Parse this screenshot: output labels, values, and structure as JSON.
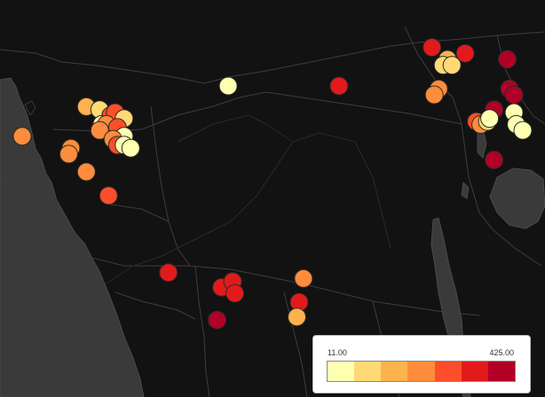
{
  "legend": {
    "min_label": "11.00",
    "max_label": "425.00",
    "color_scale": [
      "#ffffb2",
      "#fed976",
      "#feb24c",
      "#fd8d3c",
      "#fc4e2a",
      "#e31a1c",
      "#b10026"
    ]
  },
  "map": {
    "background": "#111111",
    "water_color": "#3a3a3a",
    "border_color": "#3c3c3c",
    "marker_stroke": "#2a2a2a"
  },
  "markers": [
    {
      "lat": 3.3,
      "lon": 23.3,
      "color_index": 5
    },
    {
      "lat": 4.6,
      "lon": 27.5,
      "color_index": 5
    },
    {
      "lat": 4.2,
      "lon": 28.2,
      "color_index": 2
    },
    {
      "lat": 4.0,
      "lon": 28.0,
      "color_index": 1
    },
    {
      "lat": 4.0,
      "lon": 28.4,
      "color_index": 1
    },
    {
      "lat": 4.4,
      "lon": 29.0,
      "color_index": 5
    },
    {
      "lat": 4.2,
      "lon": 30.9,
      "color_index": 6
    },
    {
      "lat": 3.3,
      "lon": 18.3,
      "color_index": 0
    },
    {
      "lat": 3.2,
      "lon": 27.8,
      "color_index": 3
    },
    {
      "lat": 3.0,
      "lon": 27.6,
      "color_index": 3
    },
    {
      "lat": 3.2,
      "lon": 31.0,
      "color_index": 6
    },
    {
      "lat": 3.0,
      "lon": 31.2,
      "color_index": 6
    },
    {
      "lat": 2.5,
      "lon": 30.3,
      "color_index": 6
    },
    {
      "lat": 2.6,
      "lon": 11.9,
      "color_index": 2
    },
    {
      "lat": 2.5,
      "lon": 12.5,
      "color_index": 1
    },
    {
      "lat": 2.3,
      "lon": 13.0,
      "color_index": 4
    },
    {
      "lat": 2.4,
      "lon": 13.2,
      "color_index": 4
    },
    {
      "lat": 2.2,
      "lon": 13.6,
      "color_index": 1
    },
    {
      "lat": 2.0,
      "lon": 12.6,
      "color_index": 0
    },
    {
      "lat": 2.0,
      "lon": 12.8,
      "color_index": 3
    },
    {
      "lat": 1.9,
      "lon": 13.3,
      "color_index": 4
    },
    {
      "lat": 1.8,
      "lon": 12.5,
      "color_index": 3
    },
    {
      "lat": 1.6,
      "lon": 13.6,
      "color_index": 0
    },
    {
      "lat": 1.5,
      "lon": 13.1,
      "color_index": 3
    },
    {
      "lat": 1.3,
      "lon": 13.3,
      "color_index": 4
    },
    {
      "lat": 1.3,
      "lon": 13.6,
      "color_index": 0
    },
    {
      "lat": 1.2,
      "lon": 13.9,
      "color_index": 0
    },
    {
      "lat": 1.6,
      "lon": 9.0,
      "color_index": 3
    },
    {
      "lat": 1.2,
      "lon": 11.2,
      "color_index": 3
    },
    {
      "lat": 1.0,
      "lon": 11.1,
      "color_index": 3
    },
    {
      "lat": 0.4,
      "lon": 11.9,
      "color_index": 3
    },
    {
      "lat": -0.4,
      "lon": 12.9,
      "color_index": 4
    },
    {
      "lat": 2.1,
      "lon": 29.5,
      "color_index": 4
    },
    {
      "lat": 2.0,
      "lon": 29.7,
      "color_index": 3
    },
    {
      "lat": 2.1,
      "lon": 30.0,
      "color_index": 1
    },
    {
      "lat": 2.2,
      "lon": 30.1,
      "color_index": 0
    },
    {
      "lat": 2.4,
      "lon": 31.2,
      "color_index": 0
    },
    {
      "lat": 2.0,
      "lon": 31.3,
      "color_index": 0
    },
    {
      "lat": 1.8,
      "lon": 31.6,
      "color_index": 0
    },
    {
      "lat": 0.8,
      "lon": 30.3,
      "color_index": 6
    },
    {
      "lat": -3.0,
      "lon": 15.6,
      "color_index": 5
    },
    {
      "lat": -3.5,
      "lon": 18.0,
      "color_index": 5
    },
    {
      "lat": -3.3,
      "lon": 18.5,
      "color_index": 5
    },
    {
      "lat": -3.7,
      "lon": 18.6,
      "color_index": 5
    },
    {
      "lat": -4.6,
      "lon": 17.8,
      "color_index": 6
    },
    {
      "lat": -3.2,
      "lon": 21.7,
      "color_index": 3
    },
    {
      "lat": -4.0,
      "lon": 21.5,
      "color_index": 5
    },
    {
      "lat": -4.5,
      "lon": 21.4,
      "color_index": 2
    }
  ]
}
